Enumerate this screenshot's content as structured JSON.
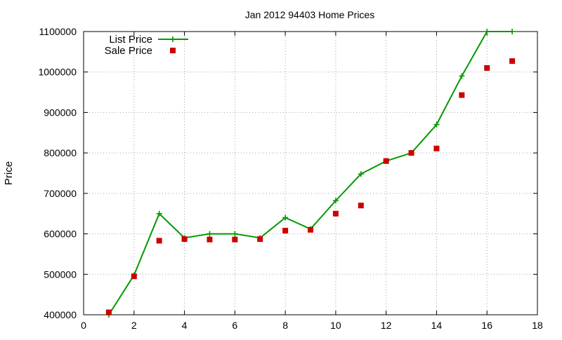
{
  "chart_data": {
    "type": "line",
    "title": "Jan 2012 94403 Home Prices",
    "xlabel": "",
    "ylabel": "Price",
    "xlim": [
      0,
      18
    ],
    "ylim": [
      400000,
      1100000
    ],
    "xticks": [
      0,
      2,
      4,
      6,
      8,
      10,
      12,
      14,
      16,
      18
    ],
    "yticks": [
      400000,
      500000,
      600000,
      700000,
      800000,
      900000,
      1000000,
      1100000
    ],
    "xtick_labels": [
      "0",
      "2",
      "4",
      "6",
      "8",
      "10",
      "12",
      "14",
      "16",
      "18"
    ],
    "ytick_labels": [
      "400000",
      "500000",
      "600000",
      "700000",
      "800000",
      "900000",
      "1000000",
      "1100000"
    ],
    "grid": true,
    "legend_position": "top-left",
    "series": [
      {
        "name": "List Price",
        "style": "line-plus",
        "color": "#009900",
        "x": [
          1,
          2,
          3,
          4,
          5,
          6,
          7,
          8,
          9,
          10,
          11,
          12,
          13,
          14,
          15,
          16,
          17
        ],
        "y": [
          400000,
          498000,
          650000,
          590000,
          600000,
          600000,
          590000,
          640000,
          612000,
          682000,
          748000,
          780000,
          800000,
          870000,
          990000,
          1100000,
          1100000
        ]
      },
      {
        "name": "Sale Price",
        "style": "square-points",
        "color": "#cc0000",
        "x": [
          1,
          2,
          3,
          4,
          5,
          6,
          7,
          8,
          9,
          10,
          11,
          12,
          13,
          14,
          15,
          16,
          17
        ],
        "y": [
          406000,
          495000,
          583000,
          587000,
          586000,
          586000,
          587000,
          608000,
          610000,
          650000,
          670000,
          780000,
          800000,
          811000,
          943000,
          1010000,
          1027000
        ]
      }
    ]
  }
}
